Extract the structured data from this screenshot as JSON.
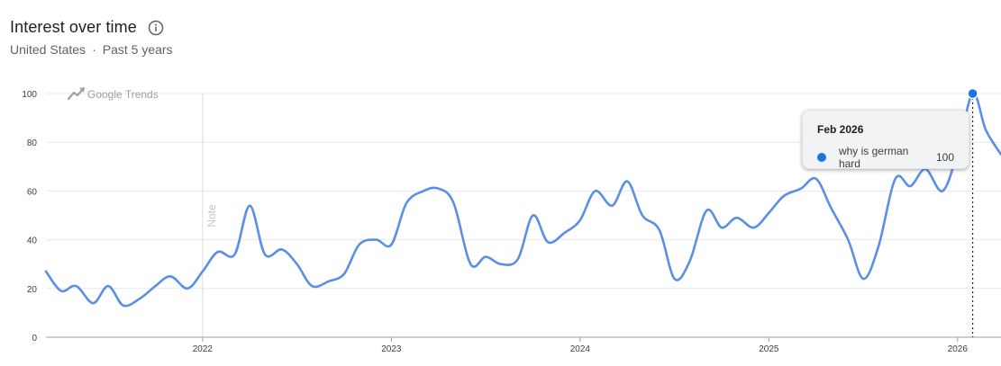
{
  "header": {
    "title": "Interest over time",
    "region": "United States",
    "separator": "·",
    "period": "Past 5 years",
    "info_icon": "info-circle-icon"
  },
  "watermark": {
    "label": "Google Trends",
    "icon": "trending-up-icon"
  },
  "note_label": "Note",
  "tooltip": {
    "date": "Feb 2026",
    "term": "why is german hard",
    "value": "100",
    "color": "#1a73e8"
  },
  "chart_data": {
    "type": "line",
    "title": "Interest over time",
    "xlabel": "",
    "ylabel": "",
    "ylim": [
      0,
      100
    ],
    "yticks": [
      0,
      20,
      40,
      60,
      80,
      100
    ],
    "xlim": [
      2021.17,
      2026.23
    ],
    "xticks": [
      "2022",
      "2023",
      "2024",
      "2025",
      "2026"
    ],
    "xtick_values": [
      2022,
      2023,
      2024,
      2025,
      2026
    ],
    "grid": true,
    "line_color": "#5b8fe6",
    "note_at": 2022,
    "series": [
      {
        "name": "why is german hard",
        "x": [
          2021.17,
          2021.25,
          2021.33,
          2021.42,
          2021.5,
          2021.58,
          2021.67,
          2021.75,
          2021.83,
          2021.92,
          2022.0,
          2022.08,
          2022.17,
          2022.25,
          2022.33,
          2022.42,
          2022.5,
          2022.58,
          2022.67,
          2022.75,
          2022.83,
          2022.92,
          2023.0,
          2023.08,
          2023.17,
          2023.25,
          2023.33,
          2023.42,
          2023.5,
          2023.58,
          2023.67,
          2023.75,
          2023.83,
          2023.92,
          2024.0,
          2024.08,
          2024.17,
          2024.25,
          2024.33,
          2024.42,
          2024.5,
          2024.58,
          2024.67,
          2024.75,
          2024.83,
          2024.92,
          2025.0,
          2025.08,
          2025.17,
          2025.25,
          2025.33,
          2025.42,
          2025.5,
          2025.58,
          2025.67,
          2025.75,
          2025.83,
          2025.92,
          2026.0,
          2026.08,
          2026.15,
          2026.23
        ],
        "values": [
          27,
          19,
          21,
          14,
          21,
          13,
          16,
          21,
          25,
          20,
          27,
          35,
          34,
          54,
          34,
          36,
          30,
          21,
          23,
          26,
          38,
          40,
          38,
          55,
          60,
          61,
          55,
          30,
          33,
          30,
          32,
          50,
          39,
          43,
          48,
          60,
          54,
          64,
          50,
          44,
          24,
          31,
          52,
          45,
          49,
          45,
          51,
          58,
          61,
          65,
          53,
          40,
          24,
          37,
          65,
          62,
          69,
          60,
          76,
          100,
          85,
          75
        ]
      }
    ]
  }
}
